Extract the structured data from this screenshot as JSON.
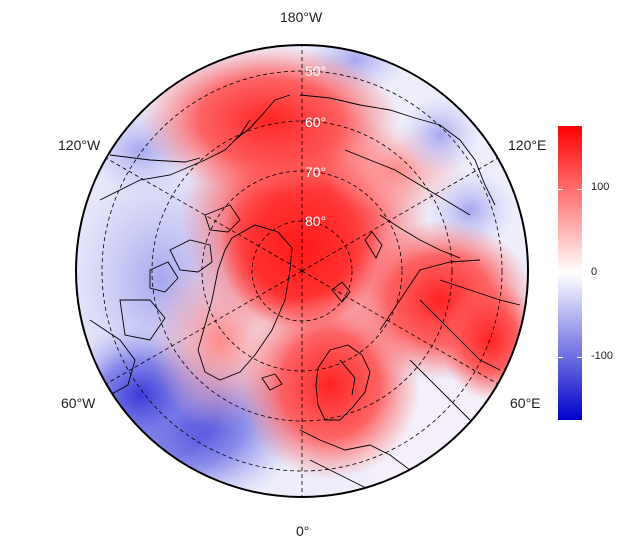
{
  "map": {
    "projection": "north-polar-stereographic",
    "longitude_labels": {
      "top": "180°W",
      "upper_left": "120°W",
      "upper_right": "120°E",
      "lower_left": "60°W",
      "lower_right": "60°E",
      "bottom": "0°"
    },
    "latitude_labels": [
      "50°",
      "60°",
      "70°",
      "80°"
    ],
    "graticule_style": "dashed",
    "coastlines": true,
    "country_borders": true
  },
  "colorbar": {
    "ticks": [
      "100",
      "0",
      "-100"
    ],
    "tick_values": [
      100,
      0,
      -100
    ],
    "range": [
      -175,
      175
    ],
    "colors": {
      "low": "#0000cc",
      "mid": "#ffffff",
      "high": "#ff0000"
    }
  }
}
